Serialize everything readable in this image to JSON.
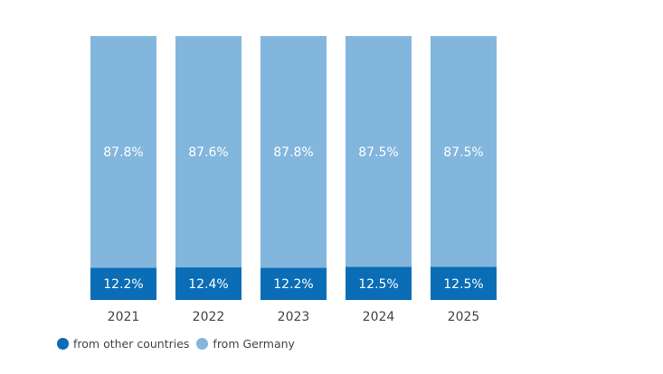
{
  "chart_data": {
    "type": "bar",
    "stacked": true,
    "percent": true,
    "categories": [
      "2021",
      "2022",
      "2023",
      "2024",
      "2025"
    ],
    "series": [
      {
        "name": "from other countries",
        "color": "#0a6db5",
        "values": [
          12.2,
          12.4,
          12.2,
          12.5,
          12.5
        ],
        "labels": [
          "12.2%",
          "12.4%",
          "12.2%",
          "12.5%",
          "12.5%"
        ]
      },
      {
        "name": "from Germany",
        "color": "#82b6dc",
        "values": [
          87.8,
          87.6,
          87.8,
          87.5,
          87.5
        ],
        "labels": [
          "87.8%",
          "87.6%",
          "87.8%",
          "87.5%",
          "87.5%"
        ]
      }
    ],
    "ylim": [
      0,
      100
    ],
    "grid": false,
    "legend_position": "bottom-left"
  }
}
